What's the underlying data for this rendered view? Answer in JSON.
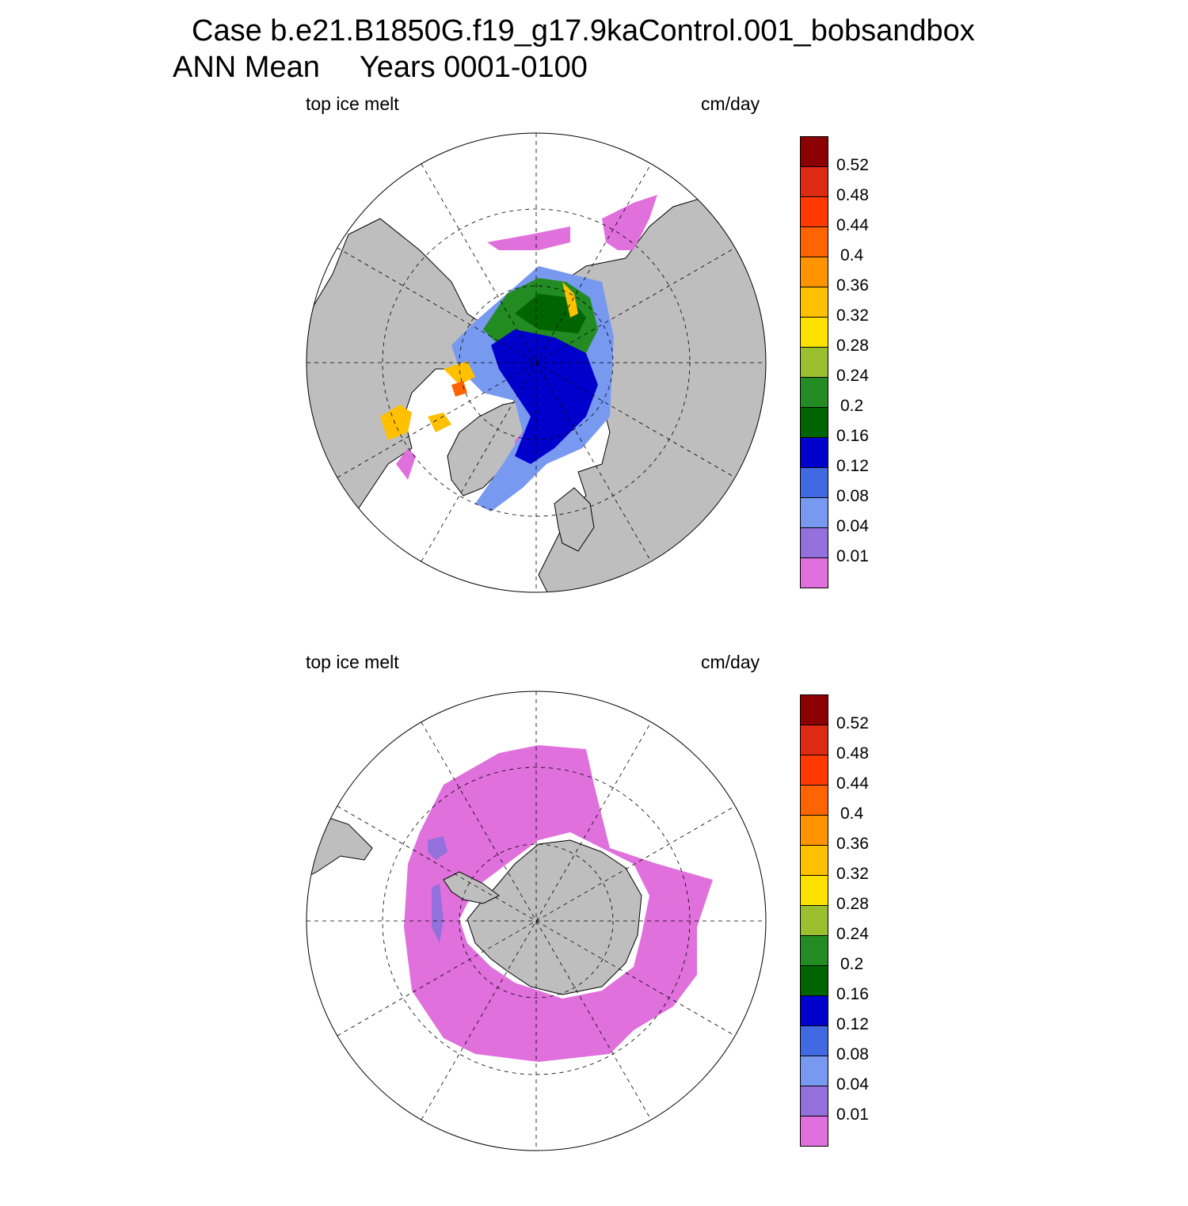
{
  "title": {
    "line1": "Case b.e21.B1850G.f19_g17.9kaControl.001_bobsandbox",
    "season": "ANN Mean",
    "years": "Years 0001-0100"
  },
  "panels": [
    {
      "variable": "top ice melt",
      "units": "cm/day",
      "hemisphere": "north"
    },
    {
      "variable": "top ice melt",
      "units": "cm/day",
      "hemisphere": "south"
    }
  ],
  "colorbar": {
    "colors": [
      "#8b0000",
      "#dd2a12",
      "#ff3a00",
      "#ff6400",
      "#ff9400",
      "#ffc000",
      "#ffe100",
      "#9ac030",
      "#228b22",
      "#006400",
      "#0000cd",
      "#4169e1",
      "#7799f0",
      "#9370db",
      "#e070dc"
    ],
    "labels": [
      "0.52",
      "0.48",
      "0.44",
      "0.4",
      "0.36",
      "0.32",
      "0.28",
      "0.24",
      "0.2",
      "0.16",
      "0.12",
      "0.08",
      "0.04",
      "0.01"
    ]
  },
  "colors": {
    "land": "#bebebe",
    "ocean": "#ffffff"
  }
}
